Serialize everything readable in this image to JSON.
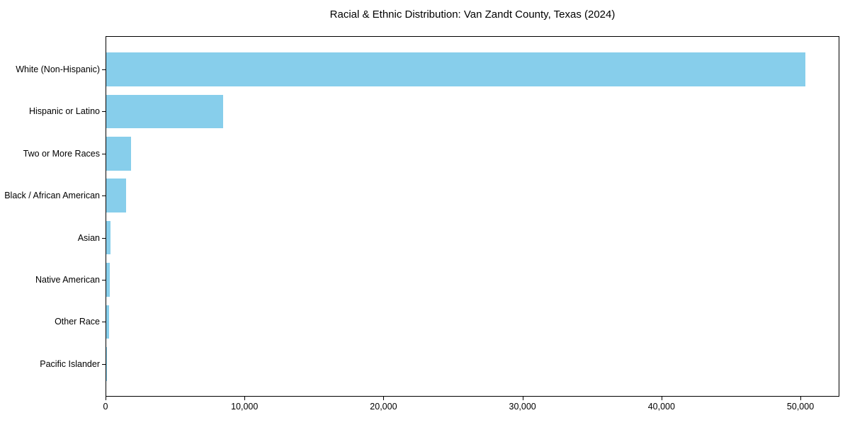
{
  "chart_data": {
    "type": "bar",
    "orientation": "horizontal",
    "title": "Racial & Ethnic Distribution: Van Zandt County, Texas (2024)",
    "categories": [
      "White (Non-Hispanic)",
      "Hispanic or Latino",
      "Two or More Races",
      "Black / African American",
      "Asian",
      "Native American",
      "Other Race",
      "Pacific Islander"
    ],
    "values": [
      50300,
      8400,
      1800,
      1450,
      310,
      260,
      210,
      15
    ],
    "xlabel": "",
    "ylabel": "",
    "xlim": [
      0,
      52800
    ],
    "xticks": [
      0,
      10000,
      20000,
      30000,
      40000,
      50000
    ],
    "xtick_labels": [
      "0",
      "10,000",
      "20,000",
      "30,000",
      "40,000",
      "50,000"
    ],
    "bar_color": "#87ceeb",
    "axis_color": "#000000",
    "text_color": "#000000",
    "background_color": "#ffffff",
    "grid": false,
    "legend": null
  }
}
